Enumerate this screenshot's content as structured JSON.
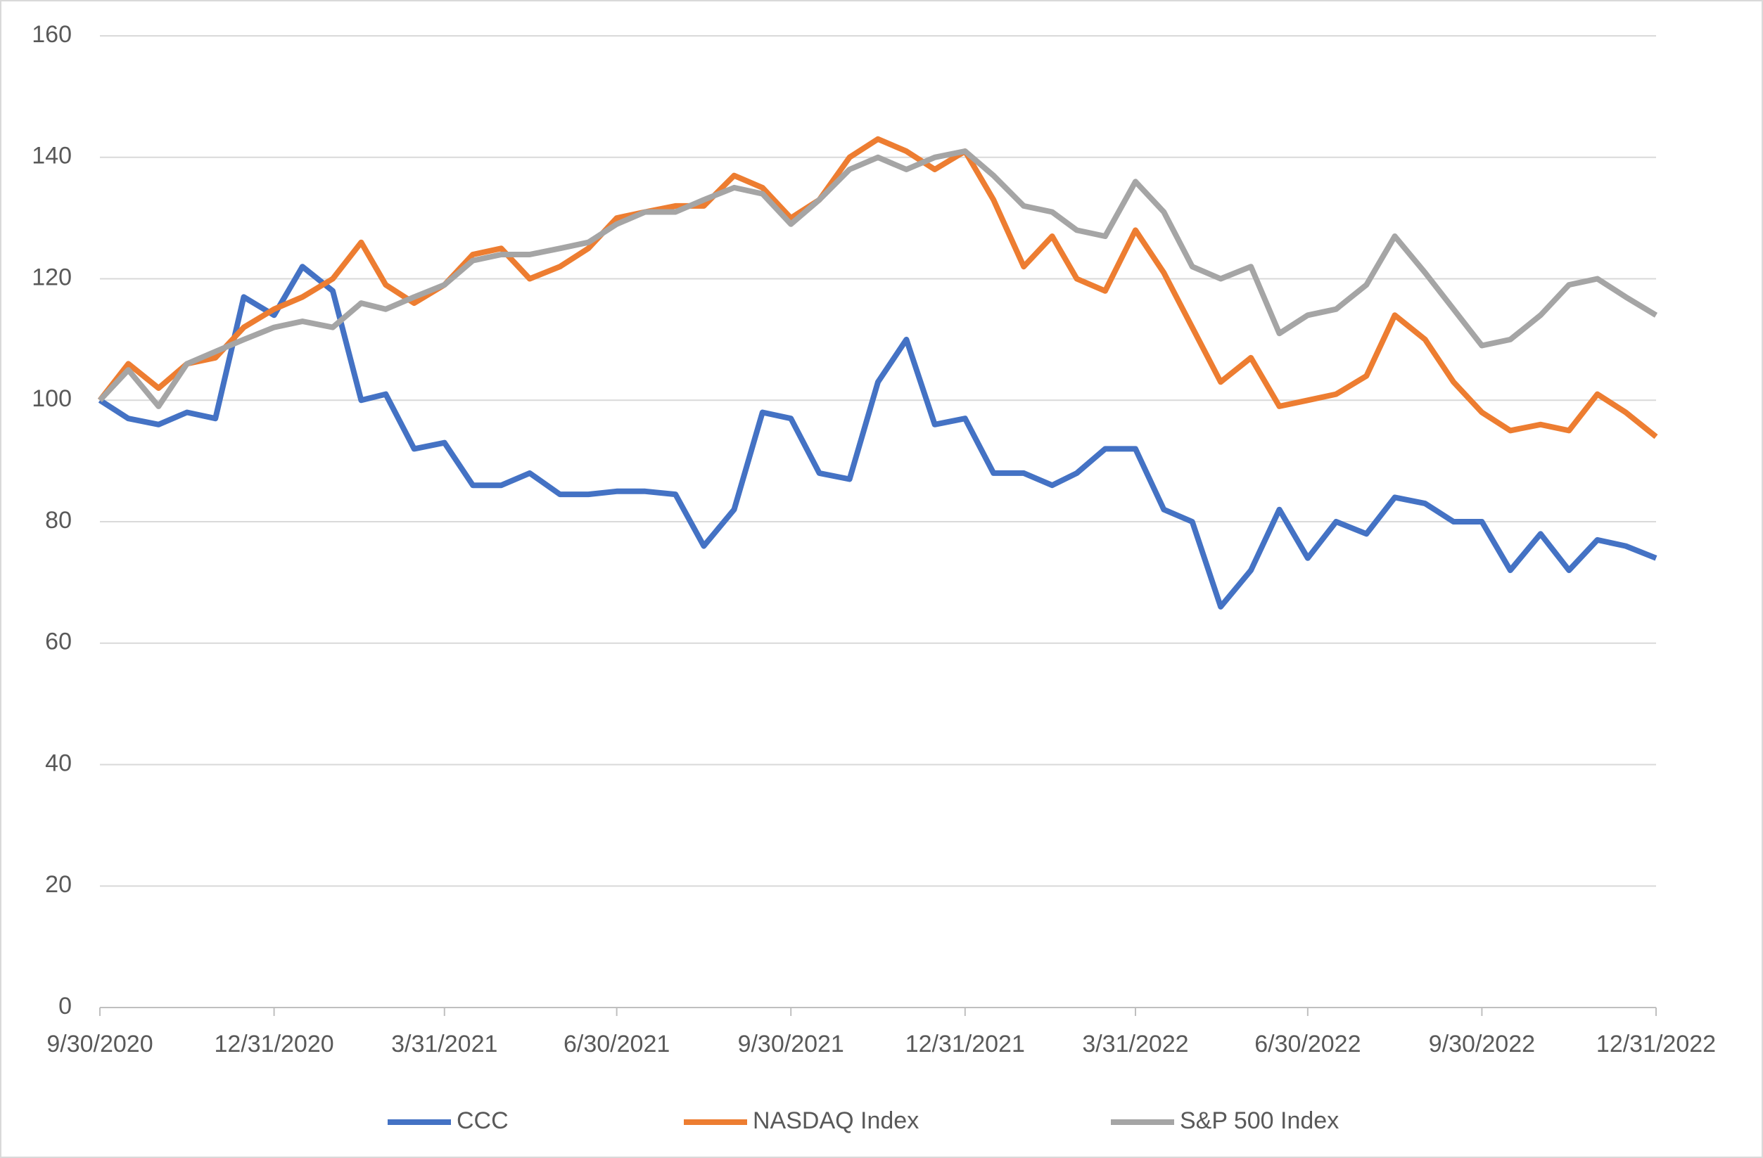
{
  "chart_data": {
    "type": "line",
    "x": [
      "9/30/2020",
      "10/15/2020",
      "10/31/2020",
      "11/15/2020",
      "11/30/2020",
      "12/15/2020",
      "12/31/2020",
      "1/15/2021",
      "1/31/2021",
      "2/15/2021",
      "2/28/2021",
      "3/15/2021",
      "3/31/2021",
      "4/15/2021",
      "4/30/2021",
      "5/15/2021",
      "5/31/2021",
      "6/15/2021",
      "6/30/2021",
      "7/15/2021",
      "7/31/2021",
      "8/15/2021",
      "8/31/2021",
      "9/15/2021",
      "9/30/2021",
      "10/15/2021",
      "10/31/2021",
      "11/15/2021",
      "11/30/2021",
      "12/15/2021",
      "12/31/2021",
      "1/15/2022",
      "1/31/2022",
      "2/15/2022",
      "2/28/2022",
      "3/15/2022",
      "3/31/2022",
      "4/15/2022",
      "4/30/2022",
      "5/15/2022",
      "5/31/2022",
      "6/15/2022",
      "6/30/2022",
      "7/15/2022",
      "7/31/2022",
      "8/15/2022",
      "8/31/2022",
      "9/15/2022",
      "9/30/2022",
      "10/15/2022",
      "10/31/2022",
      "11/15/2022",
      "11/30/2022",
      "12/15/2022",
      "12/31/2022"
    ],
    "series": [
      {
        "name": "CCC",
        "color": "#4472c4",
        "values": [
          100,
          97,
          96,
          98,
          97,
          117,
          114,
          122,
          118,
          100,
          101,
          92,
          93,
          86,
          86,
          88,
          84.5,
          84.5,
          85,
          85,
          84.5,
          76,
          82,
          98,
          97,
          88,
          87,
          103,
          110,
          96,
          97,
          88,
          88,
          86,
          88,
          92,
          92,
          82,
          80,
          66,
          72,
          82,
          74,
          80,
          78,
          84,
          83,
          80,
          80,
          72,
          78,
          72,
          77,
          76,
          74
        ]
      },
      {
        "name": "NASDAQ Index",
        "color": "#ed7d31",
        "values": [
          100,
          106,
          102,
          106,
          107,
          112,
          115,
          117,
          120,
          126,
          119,
          116,
          119,
          124,
          125,
          120,
          122,
          125,
          130,
          131,
          132,
          132,
          137,
          135,
          130,
          133,
          140,
          143,
          141,
          138,
          141,
          133,
          122,
          127,
          120,
          118,
          128,
          121,
          112,
          103,
          107,
          99,
          100,
          101,
          104,
          114,
          110,
          103,
          98,
          95,
          96,
          95,
          101,
          98,
          94
        ]
      },
      {
        "name": "S&P 500 Index",
        "color": "#a5a5a5",
        "values": [
          100,
          105,
          99,
          106,
          108,
          110,
          112,
          113,
          112,
          116,
          115,
          117,
          119,
          123,
          124,
          124,
          125,
          126,
          129,
          131,
          131,
          133,
          135,
          134,
          129,
          133,
          138,
          140,
          138,
          140,
          141,
          137,
          132,
          131,
          128,
          127,
          136,
          131,
          122,
          120,
          122,
          111,
          114,
          115,
          119,
          127,
          121,
          115,
          109,
          110,
          114,
          119,
          120,
          117,
          114
        ]
      }
    ],
    "xlim": [
      "9/30/2020",
      "12/31/2022"
    ],
    "xticks": [
      "9/30/2020",
      "12/31/2020",
      "3/31/2021",
      "6/30/2021",
      "9/30/2021",
      "12/31/2021",
      "3/31/2022",
      "6/30/2022",
      "9/30/2022",
      "12/31/2022"
    ],
    "ylim": [
      0,
      160
    ],
    "yticks": [
      0,
      20,
      40,
      60,
      80,
      100,
      120,
      140,
      160
    ],
    "grid": true,
    "legend": "bottom"
  }
}
